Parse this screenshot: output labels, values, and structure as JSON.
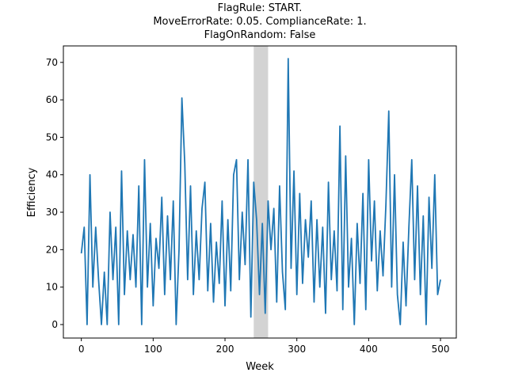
{
  "chart_data": {
    "type": "line",
    "title": [
      "FlagRule: START.",
      "MoveErrorRate: 0.05. ComplianceRate: 1.",
      "FlagOnRandom: False"
    ],
    "x_label": "Week",
    "y_label": "Efficiency",
    "x": [
      0,
      4,
      8,
      12,
      16,
      20,
      24,
      28,
      32,
      36,
      40,
      44,
      48,
      52,
      56,
      60,
      64,
      68,
      72,
      76,
      80,
      84,
      88,
      92,
      96,
      100,
      104,
      108,
      112,
      116,
      120,
      124,
      128,
      132,
      136,
      140,
      144,
      148,
      152,
      156,
      160,
      164,
      168,
      172,
      176,
      180,
      184,
      188,
      192,
      196,
      200,
      204,
      208,
      212,
      216,
      220,
      224,
      228,
      232,
      236,
      240,
      244,
      248,
      252,
      256,
      260,
      264,
      268,
      272,
      276,
      280,
      284,
      288,
      292,
      296,
      300,
      304,
      308,
      312,
      316,
      320,
      324,
      328,
      332,
      336,
      340,
      344,
      348,
      352,
      356,
      360,
      364,
      368,
      372,
      376,
      380,
      384,
      388,
      392,
      396,
      400,
      404,
      408,
      412,
      416,
      420,
      424,
      428,
      432,
      436,
      440,
      444,
      448,
      452,
      456,
      460,
      464,
      468,
      472,
      476,
      480,
      484,
      488,
      492,
      496,
      500
    ],
    "series": [
      {
        "name": "Efficiency",
        "color": "#1f77b4",
        "values": [
          19,
          26,
          0,
          40,
          10,
          26,
          12,
          0,
          14,
          0,
          30,
          12,
          26,
          0,
          41,
          8,
          25,
          12,
          24,
          10,
          37,
          0,
          44,
          10,
          27,
          5,
          23,
          15,
          34,
          8,
          29,
          12,
          33,
          0,
          20,
          60.5,
          43,
          12,
          37,
          8,
          25,
          12,
          31,
          38,
          9,
          27,
          6,
          22,
          11,
          33,
          5,
          28,
          9,
          40,
          44,
          12,
          30,
          16,
          44,
          2,
          38,
          28,
          8,
          27,
          3,
          33,
          20,
          31,
          6,
          37,
          14,
          4,
          71,
          15,
          41,
          8,
          35,
          11,
          28,
          18,
          33,
          6,
          28,
          10,
          26,
          3,
          38,
          12,
          25,
          9,
          53,
          4,
          45,
          10,
          23,
          0,
          27,
          11,
          35,
          4,
          44,
          17,
          33,
          9,
          25,
          13,
          32,
          57,
          10,
          40,
          8,
          0,
          22,
          5,
          26,
          44,
          12,
          37,
          8,
          29,
          0,
          34,
          15,
          40,
          8,
          12
        ]
      }
    ],
    "shaded_region": [
      240,
      260
    ],
    "shade_color": "#d3d3d3",
    "xlim": [
      -25,
      522
    ],
    "ylim": [
      -3.6,
      74.4
    ],
    "xticks": [
      0,
      100,
      200,
      300,
      400,
      500
    ],
    "yticks": [
      0,
      10,
      20,
      30,
      40,
      50,
      60,
      70
    ]
  }
}
